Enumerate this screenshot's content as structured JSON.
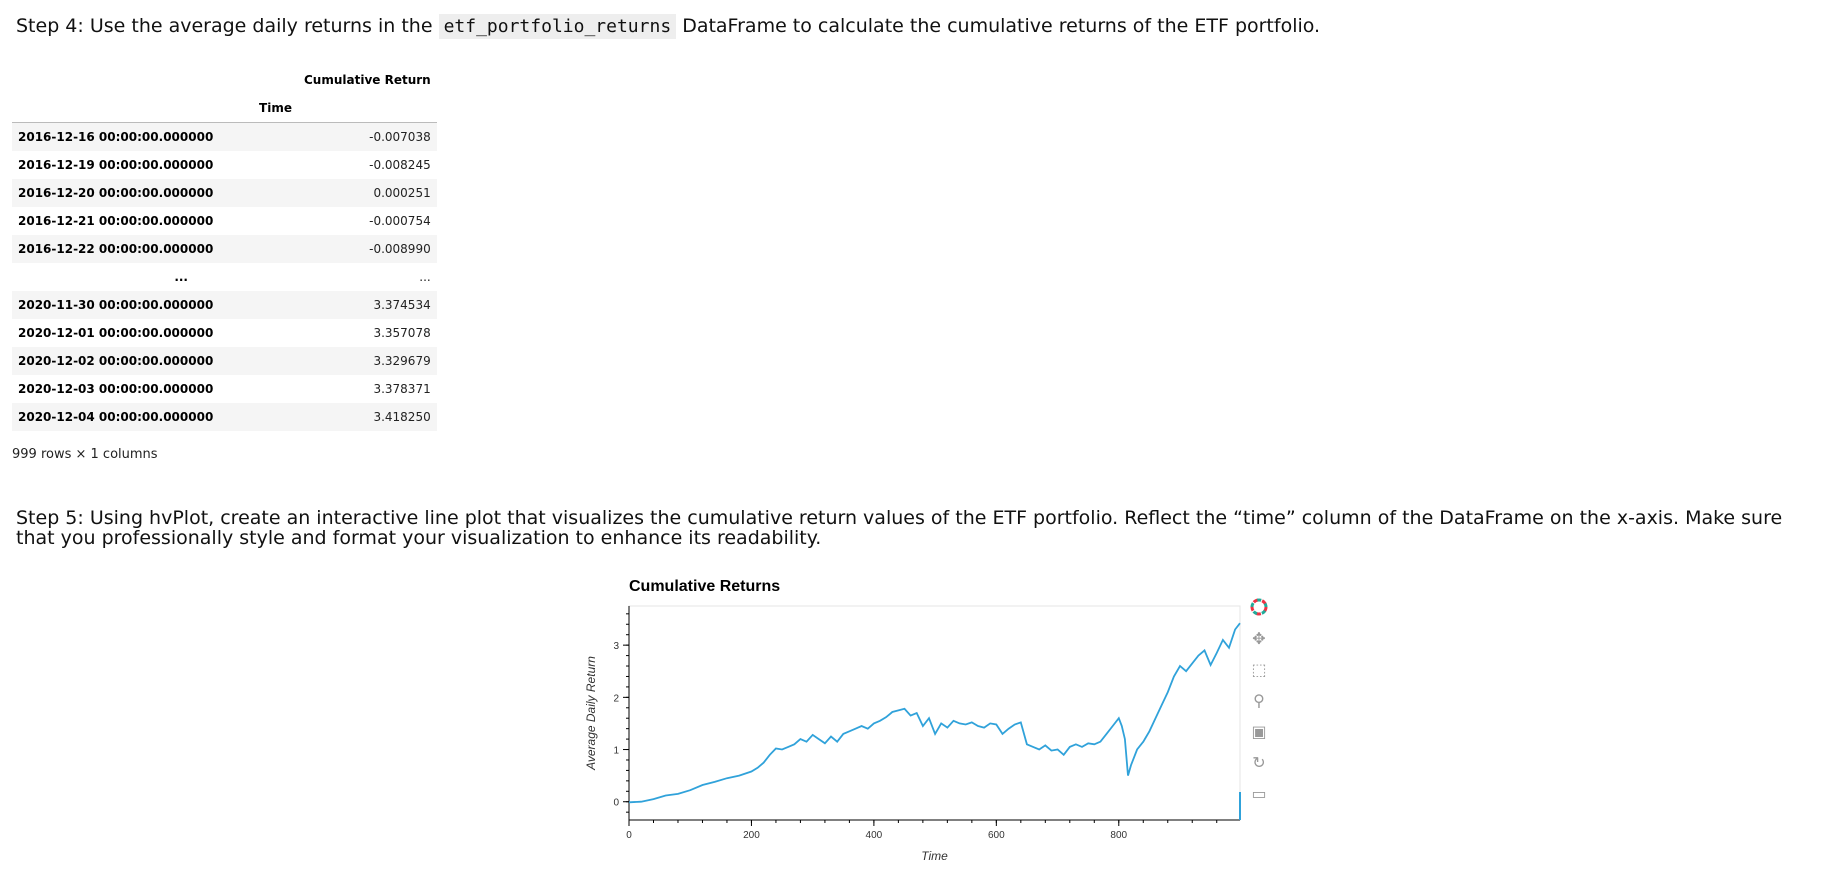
{
  "step4": {
    "prefix": "Step 4: Use the average daily returns in the ",
    "code": "etf_portfolio_returns",
    "suffix": " DataFrame to calculate the cumulative returns of the ETF portfolio."
  },
  "table": {
    "column_header": "Cumulative Return",
    "index_name": "Time",
    "rows": [
      {
        "index": "2016-12-16 00:00:00.000000",
        "value": "-0.007038"
      },
      {
        "index": "2016-12-19 00:00:00.000000",
        "value": "-0.008245"
      },
      {
        "index": "2016-12-20 00:00:00.000000",
        "value": "0.000251"
      },
      {
        "index": "2016-12-21 00:00:00.000000",
        "value": "-0.000754"
      },
      {
        "index": "2016-12-22 00:00:00.000000",
        "value": "-0.008990"
      },
      {
        "index": "...",
        "value": "..."
      },
      {
        "index": "2020-11-30 00:00:00.000000",
        "value": "3.374534"
      },
      {
        "index": "2020-12-01 00:00:00.000000",
        "value": "3.357078"
      },
      {
        "index": "2020-12-02 00:00:00.000000",
        "value": "3.329679"
      },
      {
        "index": "2020-12-03 00:00:00.000000",
        "value": "3.378371"
      },
      {
        "index": "2020-12-04 00:00:00.000000",
        "value": "3.418250"
      }
    ],
    "shape_info": "999 rows × 1 columns"
  },
  "step5": {
    "text": "Step 5: Using hvPlot, create an interactive line plot that visualizes the cumulative return values of the ETF portfolio. Reflect the “time” column of the DataFrame on the x-axis. Make sure that you professionally style and format your visualization to enhance its readability."
  },
  "toolbar": {
    "tools": [
      "bokeh-logo-icon",
      "pan-icon",
      "box-zoom-icon",
      "wheel-zoom-icon",
      "save-icon",
      "reset-icon",
      "hover-icon"
    ]
  },
  "chart_data": {
    "type": "line",
    "title": "Cumulative Returns",
    "xlabel": "Time",
    "ylabel": "Average Daily Return",
    "xlim": [
      0,
      998
    ],
    "ylim": [
      -0.35,
      3.75
    ],
    "x_ticks": [
      0,
      200,
      400,
      600,
      800
    ],
    "y_ticks": [
      0,
      1,
      2,
      3
    ],
    "line_color": "#30a2da",
    "series": [
      {
        "x": [
          0,
          20,
          40,
          60,
          80,
          100,
          120,
          140,
          160,
          180,
          200,
          210,
          220,
          230,
          240,
          250,
          260,
          270,
          280,
          290,
          300,
          310,
          320,
          330,
          340,
          350,
          360,
          370,
          380,
          390,
          400,
          410,
          420,
          430,
          440,
          450,
          460,
          470,
          480,
          490,
          500,
          510,
          520,
          530,
          540,
          550,
          560,
          570,
          580,
          590,
          600,
          610,
          620,
          630,
          640,
          650,
          660,
          670,
          680,
          690,
          700,
          710,
          720,
          730,
          740,
          750,
          760,
          770,
          780,
          790,
          800,
          805,
          810,
          815,
          820,
          830,
          840,
          850,
          860,
          870,
          880,
          890,
          900,
          910,
          920,
          930,
          940,
          950,
          960,
          970,
          980,
          990,
          998
        ],
        "y": [
          -0.01,
          0.0,
          0.05,
          0.12,
          0.15,
          0.22,
          0.32,
          0.38,
          0.45,
          0.5,
          0.58,
          0.65,
          0.75,
          0.9,
          1.02,
          1.0,
          1.05,
          1.1,
          1.2,
          1.15,
          1.28,
          1.2,
          1.12,
          1.25,
          1.15,
          1.3,
          1.35,
          1.4,
          1.45,
          1.4,
          1.5,
          1.55,
          1.62,
          1.72,
          1.75,
          1.78,
          1.65,
          1.7,
          1.45,
          1.6,
          1.3,
          1.5,
          1.42,
          1.55,
          1.5,
          1.48,
          1.52,
          1.45,
          1.42,
          1.5,
          1.48,
          1.3,
          1.4,
          1.48,
          1.52,
          1.1,
          1.05,
          1.0,
          1.08,
          0.98,
          1.0,
          0.9,
          1.05,
          1.1,
          1.05,
          1.12,
          1.1,
          1.15,
          1.3,
          1.45,
          1.6,
          1.45,
          1.2,
          0.5,
          0.7,
          1.0,
          1.15,
          1.35,
          1.6,
          1.85,
          2.1,
          2.4,
          2.6,
          2.5,
          2.65,
          2.8,
          2.9,
          2.62,
          2.85,
          3.1,
          2.95,
          3.3,
          3.42
        ]
      }
    ]
  }
}
